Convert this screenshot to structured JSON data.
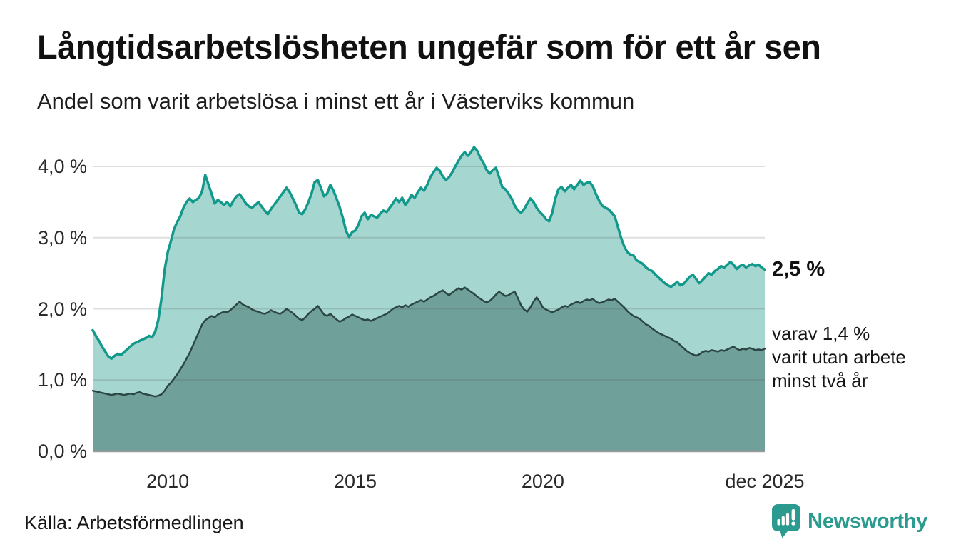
{
  "header": {
    "title": "Långtidsarbetslösheten ungefär som för ett år sen",
    "subtitle": "Andel som varit arbetslösa i minst ett år i Västerviks kommun"
  },
  "footer": {
    "source": "Källa: Arbetsförmedlingen",
    "brand": "Newsworthy"
  },
  "colors": {
    "primary_line": "#12998c",
    "primary_fill": "#a5d6d0",
    "secondary_line": "#2c4643",
    "secondary_fill": "#70a09a",
    "grid": "rgba(80,80,80,0.18)",
    "baseline": "#9a9a9a",
    "text": "#161616",
    "brand_teal": "#2b9a8f"
  },
  "chart_data": {
    "type": "area",
    "unit": "%",
    "frequency": "monthly",
    "x_start": "2008-01",
    "x_end": "2025-12",
    "x_range": [
      2008.0,
      2025.9167
    ],
    "ylim": [
      0,
      4.4
    ],
    "grid": "horizontal",
    "yticks": [
      {
        "value": 0,
        "label": "0,0 %"
      },
      {
        "value": 1,
        "label": "1,0 %"
      },
      {
        "value": 2,
        "label": "2,0 %"
      },
      {
        "value": 3,
        "label": "3,0 %"
      },
      {
        "value": 4,
        "label": "4,0 %"
      }
    ],
    "xticks": [
      {
        "pos": 2010.0,
        "label": "2010"
      },
      {
        "pos": 2015.0,
        "label": "2015"
      },
      {
        "pos": 2020.0,
        "label": "2020"
      },
      {
        "pos": 2025.9167,
        "label": "dec 2025"
      }
    ],
    "end_labels": {
      "primary": "2,5 %",
      "secondary": "varav 1,4 %\nvarit utan arbete\nminst två år"
    },
    "series": [
      {
        "name": "Arbetslösa minst ett år",
        "color": "#12998c",
        "fill": "#a5d6d0",
        "line_width": 3.5,
        "values": [
          1.7,
          1.62,
          1.55,
          1.47,
          1.4,
          1.33,
          1.3,
          1.34,
          1.37,
          1.35,
          1.39,
          1.43,
          1.47,
          1.51,
          1.53,
          1.55,
          1.57,
          1.59,
          1.62,
          1.6,
          1.68,
          1.85,
          2.15,
          2.55,
          2.8,
          2.95,
          3.12,
          3.22,
          3.3,
          3.42,
          3.5,
          3.55,
          3.5,
          3.53,
          3.56,
          3.65,
          3.88,
          3.75,
          3.62,
          3.48,
          3.53,
          3.5,
          3.46,
          3.5,
          3.44,
          3.52,
          3.58,
          3.61,
          3.55,
          3.48,
          3.44,
          3.42,
          3.46,
          3.5,
          3.44,
          3.38,
          3.33,
          3.4,
          3.46,
          3.52,
          3.58,
          3.64,
          3.7,
          3.64,
          3.55,
          3.46,
          3.35,
          3.33,
          3.4,
          3.5,
          3.62,
          3.78,
          3.81,
          3.7,
          3.58,
          3.62,
          3.74,
          3.66,
          3.55,
          3.43,
          3.28,
          3.1,
          3.01,
          3.08,
          3.1,
          3.18,
          3.3,
          3.35,
          3.26,
          3.32,
          3.3,
          3.28,
          3.34,
          3.38,
          3.36,
          3.42,
          3.48,
          3.55,
          3.5,
          3.56,
          3.46,
          3.52,
          3.6,
          3.56,
          3.64,
          3.7,
          3.66,
          3.74,
          3.85,
          3.92,
          3.98,
          3.94,
          3.86,
          3.81,
          3.85,
          3.92,
          4.0,
          4.08,
          4.15,
          4.2,
          4.15,
          4.2,
          4.27,
          4.22,
          4.12,
          4.05,
          3.95,
          3.9,
          3.95,
          3.98,
          3.85,
          3.71,
          3.68,
          3.62,
          3.55,
          3.45,
          3.38,
          3.35,
          3.4,
          3.48,
          3.55,
          3.5,
          3.42,
          3.36,
          3.32,
          3.26,
          3.23,
          3.35,
          3.55,
          3.68,
          3.71,
          3.65,
          3.7,
          3.74,
          3.68,
          3.74,
          3.8,
          3.74,
          3.77,
          3.78,
          3.72,
          3.61,
          3.52,
          3.45,
          3.42,
          3.4,
          3.35,
          3.3,
          3.15,
          3.0,
          2.88,
          2.8,
          2.76,
          2.75,
          2.68,
          2.66,
          2.63,
          2.58,
          2.55,
          2.53,
          2.48,
          2.44,
          2.4,
          2.36,
          2.33,
          2.31,
          2.34,
          2.38,
          2.33,
          2.35,
          2.4,
          2.45,
          2.48,
          2.42,
          2.36,
          2.4,
          2.45,
          2.5,
          2.48,
          2.53,
          2.56,
          2.6,
          2.58,
          2.62,
          2.66,
          2.62,
          2.56,
          2.6,
          2.62,
          2.58,
          2.61,
          2.63,
          2.6,
          2.62,
          2.58,
          2.55
        ]
      },
      {
        "name": "varav utan arbete minst två år",
        "color": "#2c4643",
        "fill": "#70a09a",
        "line_width": 2.5,
        "values": [
          0.85,
          0.84,
          0.83,
          0.82,
          0.81,
          0.8,
          0.79,
          0.8,
          0.81,
          0.8,
          0.79,
          0.8,
          0.81,
          0.8,
          0.82,
          0.83,
          0.81,
          0.8,
          0.79,
          0.78,
          0.77,
          0.78,
          0.8,
          0.85,
          0.92,
          0.96,
          1.02,
          1.08,
          1.15,
          1.22,
          1.3,
          1.38,
          1.48,
          1.58,
          1.68,
          1.78,
          1.84,
          1.87,
          1.9,
          1.88,
          1.92,
          1.94,
          1.96,
          1.95,
          1.98,
          2.02,
          2.06,
          2.1,
          2.06,
          2.04,
          2.02,
          1.99,
          1.97,
          1.96,
          1.94,
          1.93,
          1.95,
          1.98,
          1.96,
          1.94,
          1.93,
          1.96,
          2.0,
          1.97,
          1.94,
          1.9,
          1.86,
          1.84,
          1.88,
          1.93,
          1.97,
          2.0,
          2.04,
          1.98,
          1.92,
          1.9,
          1.93,
          1.89,
          1.85,
          1.82,
          1.84,
          1.87,
          1.89,
          1.92,
          1.9,
          1.88,
          1.86,
          1.84,
          1.85,
          1.83,
          1.85,
          1.87,
          1.89,
          1.91,
          1.93,
          1.96,
          2.0,
          2.02,
          2.04,
          2.02,
          2.05,
          2.03,
          2.06,
          2.08,
          2.1,
          2.12,
          2.1,
          2.13,
          2.16,
          2.18,
          2.21,
          2.24,
          2.26,
          2.22,
          2.19,
          2.23,
          2.26,
          2.29,
          2.27,
          2.3,
          2.27,
          2.24,
          2.21,
          2.17,
          2.14,
          2.11,
          2.09,
          2.11,
          2.15,
          2.2,
          2.24,
          2.21,
          2.18,
          2.19,
          2.22,
          2.24,
          2.15,
          2.05,
          1.99,
          1.96,
          2.02,
          2.1,
          2.16,
          2.1,
          2.02,
          1.99,
          1.97,
          1.95,
          1.97,
          1.99,
          2.02,
          2.04,
          2.03,
          2.06,
          2.08,
          2.1,
          2.08,
          2.11,
          2.13,
          2.12,
          2.14,
          2.1,
          2.08,
          2.09,
          2.11,
          2.13,
          2.12,
          2.14,
          2.1,
          2.06,
          2.02,
          1.97,
          1.93,
          1.9,
          1.88,
          1.86,
          1.82,
          1.78,
          1.76,
          1.72,
          1.69,
          1.66,
          1.64,
          1.62,
          1.6,
          1.58,
          1.55,
          1.53,
          1.49,
          1.45,
          1.41,
          1.38,
          1.36,
          1.34,
          1.36,
          1.39,
          1.41,
          1.4,
          1.42,
          1.41,
          1.4,
          1.42,
          1.41,
          1.43,
          1.45,
          1.47,
          1.44,
          1.42,
          1.44,
          1.43,
          1.45,
          1.44,
          1.42,
          1.43,
          1.42,
          1.44
        ]
      }
    ]
  }
}
